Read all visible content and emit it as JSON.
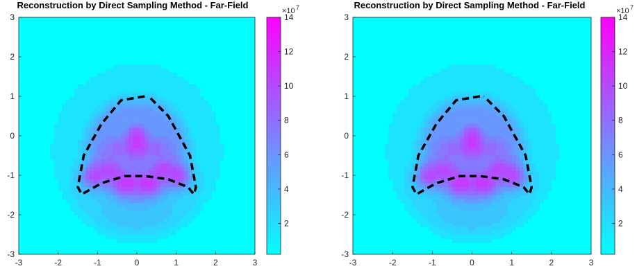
{
  "chart_data": [
    {
      "type": "heatmap",
      "title": "Reconstruction by Direct Sampling Method - Far-Field",
      "xlim": [
        -3,
        3
      ],
      "ylim": [
        -3,
        3
      ],
      "x_ticks": [
        "-3",
        "-2",
        "-1",
        "0",
        "1",
        "2",
        "3"
      ],
      "y_ticks": [
        "3",
        "2",
        "1",
        "0",
        "-1",
        "-2",
        "-3"
      ],
      "colorbar": {
        "range": [
          0.2,
          14
        ],
        "ticks": [
          "14",
          "12",
          "10",
          "8",
          "6",
          "4",
          "2"
        ],
        "exponent_label": "×10",
        "exponent_power": "7",
        "colormap": [
          "#00ffff",
          "#ff00ff"
        ]
      },
      "boundary_curve": {
        "style": "dashed",
        "color": "#000000",
        "points": [
          [
            0.2,
            1.0
          ],
          [
            -0.4,
            0.9
          ],
          [
            -0.9,
            0.3
          ],
          [
            -1.35,
            -0.5
          ],
          [
            -1.5,
            -1.3
          ],
          [
            -1.4,
            -1.48
          ],
          [
            -0.9,
            -1.2
          ],
          [
            -0.3,
            -1.02
          ],
          [
            0.2,
            -1.02
          ],
          [
            0.8,
            -1.1
          ],
          [
            1.3,
            -1.3
          ],
          [
            1.45,
            -1.48
          ],
          [
            1.5,
            -1.3
          ],
          [
            1.35,
            -0.5
          ],
          [
            0.8,
            0.5
          ],
          [
            0.3,
            1.0
          ]
        ]
      }
    },
    {
      "type": "heatmap",
      "title": "Reconstruction by Direct Sampling Method - Far-Field",
      "xlim": [
        -3,
        3
      ],
      "ylim": [
        -3,
        3
      ],
      "x_ticks": [
        "-3",
        "-2",
        "-1",
        "0",
        "1",
        "2",
        "3"
      ],
      "y_ticks": [
        "3",
        "2",
        "1",
        "0",
        "-1",
        "-2",
        "-3"
      ],
      "colorbar": {
        "range": [
          0.2,
          14
        ],
        "ticks": [
          "14",
          "12",
          "10",
          "8",
          "6",
          "4",
          "2"
        ],
        "exponent_label": "×10",
        "exponent_power": "7",
        "colormap": [
          "#00ffff",
          "#ff00ff"
        ]
      },
      "boundary_curve": {
        "style": "dashed",
        "color": "#000000",
        "points": [
          [
            0.2,
            1.0
          ],
          [
            -0.4,
            0.9
          ],
          [
            -0.9,
            0.3
          ],
          [
            -1.35,
            -0.5
          ],
          [
            -1.5,
            -1.3
          ],
          [
            -1.4,
            -1.48
          ],
          [
            -0.9,
            -1.2
          ],
          [
            -0.3,
            -1.02
          ],
          [
            0.2,
            -1.02
          ],
          [
            0.8,
            -1.1
          ],
          [
            1.3,
            -1.3
          ],
          [
            1.45,
            -1.48
          ],
          [
            1.5,
            -1.3
          ],
          [
            1.35,
            -0.5
          ],
          [
            0.8,
            0.5
          ],
          [
            0.3,
            1.0
          ]
        ]
      }
    }
  ]
}
